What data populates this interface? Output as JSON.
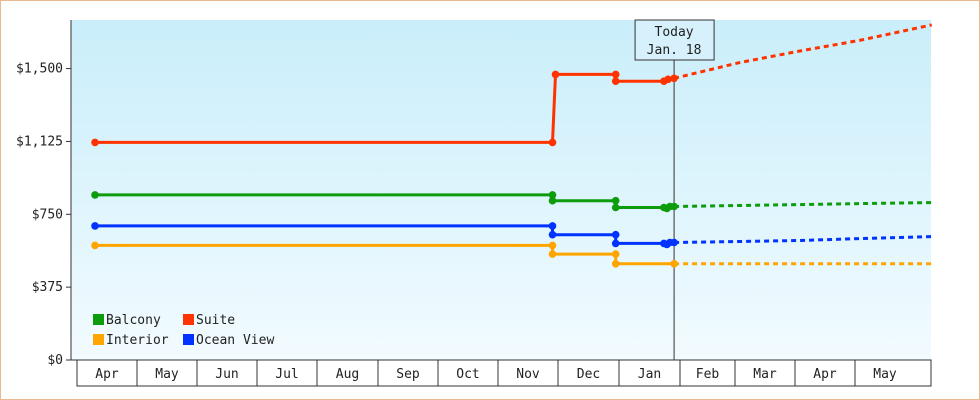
{
  "chart_data": {
    "type": "line",
    "y_ticks": [
      {
        "value": 0,
        "label": "$0"
      },
      {
        "value": 375,
        "label": "$375"
      },
      {
        "value": 750,
        "label": "$750"
      },
      {
        "value": 1125,
        "label": "$1,125"
      },
      {
        "value": 1500,
        "label": "$1,500"
      }
    ],
    "ylim": [
      0,
      1750
    ],
    "months": [
      "Apr",
      "May",
      "Jun",
      "Jul",
      "Aug",
      "Sep",
      "Oct",
      "Nov",
      "Dec",
      "Jan",
      "Feb",
      "Mar",
      "Apr",
      "May"
    ],
    "today": {
      "line1": "Today",
      "line2": "Jan. 18",
      "x": 9.42
    },
    "legend": [
      {
        "name": "Balcony",
        "color": "#0c9c0c"
      },
      {
        "name": "Suite",
        "color": "#ff3300"
      },
      {
        "name": "Interior",
        "color": "#ffa500"
      },
      {
        "name": "Ocean View",
        "color": "#0033ff"
      }
    ],
    "series": [
      {
        "name": "Suite",
        "color": "#ff3300",
        "points": [
          [
            -0.2,
            1120
          ],
          [
            7.4,
            1120
          ],
          [
            7.45,
            1470
          ],
          [
            8.45,
            1470
          ],
          [
            8.45,
            1435
          ],
          [
            9.25,
            1435
          ],
          [
            9.3,
            1445
          ],
          [
            9.35,
            1445
          ],
          [
            9.42,
            1450
          ]
        ],
        "markers": [
          [
            -0.2,
            1120
          ],
          [
            7.4,
            1120
          ],
          [
            7.45,
            1470
          ],
          [
            8.45,
            1470
          ],
          [
            8.45,
            1435
          ],
          [
            9.25,
            1435
          ],
          [
            9.32,
            1445
          ],
          [
            9.42,
            1450
          ]
        ],
        "forecast": [
          [
            9.42,
            1450
          ],
          [
            10.5,
            1530
          ],
          [
            11.5,
            1590
          ],
          [
            12.5,
            1645
          ],
          [
            13.7,
            1725
          ]
        ]
      },
      {
        "name": "Balcony",
        "color": "#0c9c0c",
        "points": [
          [
            -0.2,
            850
          ],
          [
            7.4,
            850
          ],
          [
            7.4,
            820
          ],
          [
            8.45,
            820
          ],
          [
            8.45,
            785
          ],
          [
            9.25,
            785
          ],
          [
            9.3,
            780
          ],
          [
            9.35,
            790
          ],
          [
            9.42,
            790
          ]
        ],
        "markers": [
          [
            -0.2,
            850
          ],
          [
            7.4,
            850
          ],
          [
            7.4,
            820
          ],
          [
            8.45,
            820
          ],
          [
            8.45,
            785
          ],
          [
            9.25,
            785
          ],
          [
            9.3,
            780
          ],
          [
            9.35,
            790
          ],
          [
            9.42,
            790
          ]
        ],
        "forecast": [
          [
            9.42,
            790
          ],
          [
            10.5,
            795
          ],
          [
            11.5,
            800
          ],
          [
            12.5,
            805
          ],
          [
            13.7,
            810
          ]
        ]
      },
      {
        "name": "Ocean View",
        "color": "#0033ff",
        "points": [
          [
            -0.2,
            690
          ],
          [
            7.4,
            690
          ],
          [
            7.4,
            645
          ],
          [
            8.45,
            645
          ],
          [
            8.45,
            600
          ],
          [
            9.25,
            600
          ],
          [
            9.3,
            595
          ],
          [
            9.35,
            605
          ],
          [
            9.42,
            605
          ]
        ],
        "markers": [
          [
            -0.2,
            690
          ],
          [
            7.4,
            690
          ],
          [
            7.4,
            645
          ],
          [
            8.45,
            645
          ],
          [
            8.45,
            600
          ],
          [
            9.25,
            600
          ],
          [
            9.3,
            595
          ],
          [
            9.35,
            605
          ],
          [
            9.42,
            605
          ]
        ],
        "forecast": [
          [
            9.42,
            605
          ],
          [
            10.5,
            610
          ],
          [
            11.5,
            615
          ],
          [
            12.5,
            625
          ],
          [
            13.7,
            635
          ]
        ]
      },
      {
        "name": "Interior",
        "color": "#ffa500",
        "points": [
          [
            -0.2,
            590
          ],
          [
            7.4,
            590
          ],
          [
            7.4,
            545
          ],
          [
            8.45,
            545
          ],
          [
            8.45,
            495
          ],
          [
            9.42,
            495
          ]
        ],
        "markers": [
          [
            -0.2,
            590
          ],
          [
            7.4,
            590
          ],
          [
            7.4,
            545
          ],
          [
            8.45,
            545
          ],
          [
            8.45,
            495
          ],
          [
            9.42,
            495
          ]
        ],
        "forecast": [
          [
            9.42,
            495
          ],
          [
            13.7,
            495
          ]
        ]
      }
    ]
  }
}
